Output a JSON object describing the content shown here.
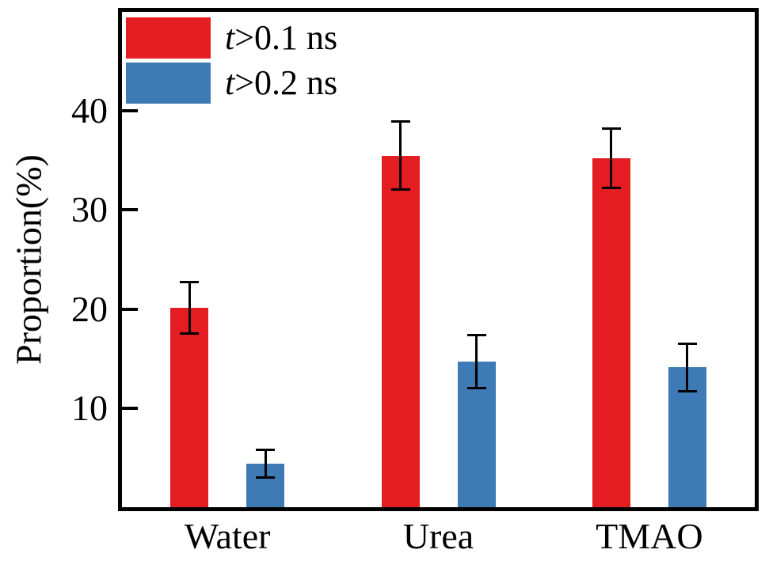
{
  "chart_data": {
    "type": "bar",
    "title": "",
    "categories": [
      "Water",
      "Urea",
      "TMAO"
    ],
    "series": [
      {
        "name": "t>0.1 ns",
        "name_italic": "t",
        "name_rest": ">0.1 ns",
        "color": "#e41d22",
        "values": [
          20.1,
          35.5,
          35.2
        ],
        "errors": [
          2.6,
          3.4,
          3.0
        ]
      },
      {
        "name": "t>0.2 ns",
        "name_italic": "t",
        "name_rest": ">0.2 ns",
        "color": "#3e7ab5",
        "values": [
          4.4,
          14.7,
          14.1
        ],
        "errors": [
          1.4,
          2.7,
          2.4
        ]
      }
    ],
    "xlabel": "",
    "ylabel": "Proportion(%)",
    "yticks": [
      10,
      20,
      30,
      40
    ],
    "ylim": [
      0,
      50
    ],
    "grid": false,
    "legend_position": "top-left",
    "axis_color": "#000000",
    "error_bar_color": "#000000"
  }
}
